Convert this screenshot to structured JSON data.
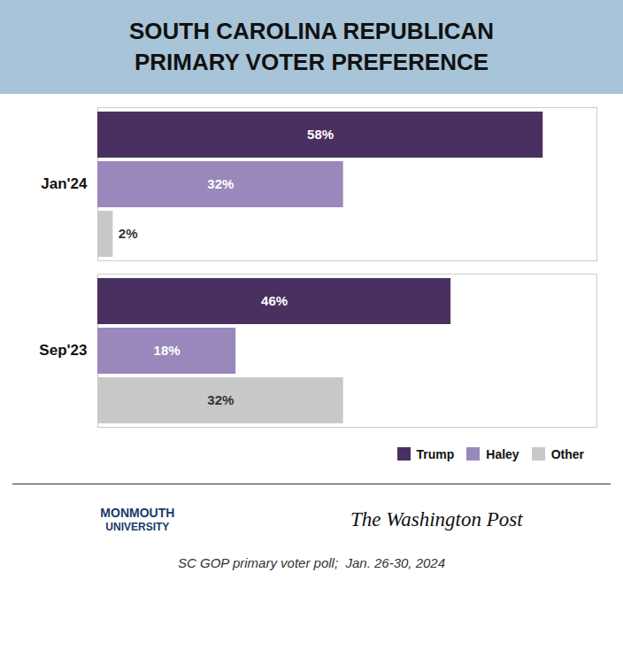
{
  "chart_data": {
    "type": "bar",
    "orientation": "horizontal",
    "title": "SOUTH CAROLINA REPUBLICAN\nPRIMARY VOTER PREFERENCE",
    "categories": [
      "Jan'24",
      "Sep'23"
    ],
    "series": [
      {
        "name": "Trump",
        "color": "#4a3060",
        "values": [
          58,
          46
        ],
        "value_labels": [
          "58%",
          "46%"
        ]
      },
      {
        "name": "Haley",
        "color": "#9988bb",
        "values": [
          32,
          18
        ],
        "value_labels": [
          "32%",
          "18%"
        ]
      },
      {
        "name": "Other",
        "color": "#c8c8c8",
        "values": [
          2,
          32
        ],
        "value_labels": [
          "2%",
          "32%"
        ]
      }
    ],
    "xlim": [
      0,
      65
    ],
    "tick_labels": "y",
    "data_labels": true,
    "grid": false,
    "legend": "lower right",
    "annotations": [
      "MONMOUTH",
      "UNIVERSITY",
      "The Washington Post",
      "SC GOP primary voter poll;  Jan. 26-30, 2024"
    ]
  }
}
